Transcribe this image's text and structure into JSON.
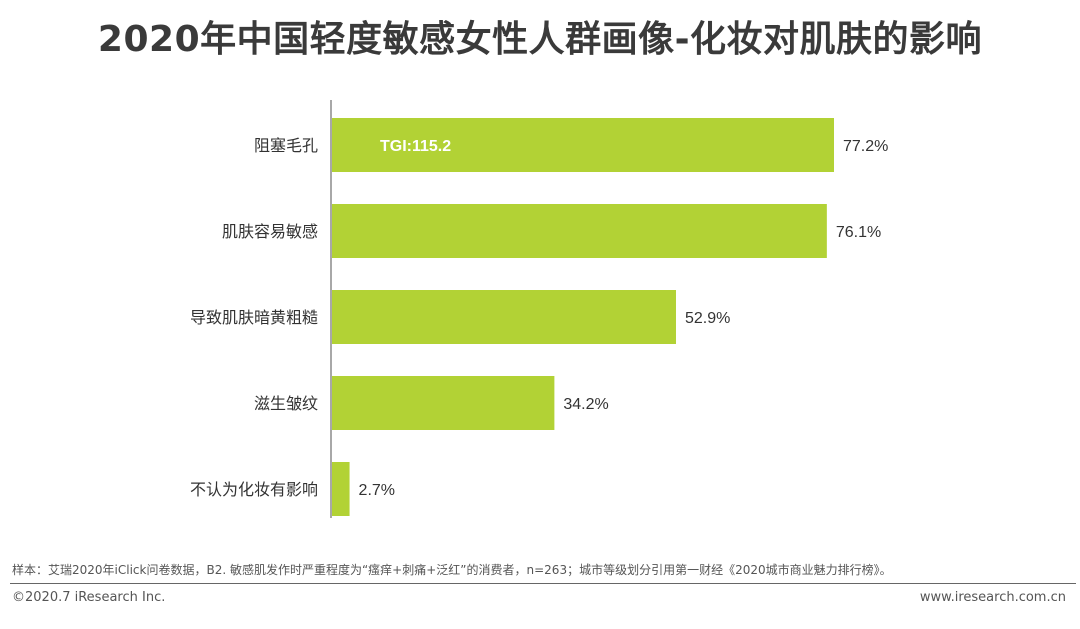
{
  "header": {
    "title": "2020年中国轻度敏感女性人群画像-化妆对肌肤的影响"
  },
  "chart_data": {
    "type": "bar",
    "orientation": "horizontal",
    "categories": [
      "阻塞毛孔",
      "肌肤容易敏感",
      "导致肌肤暗黄粗糙",
      "滋生皱纹",
      "不认为化妆有影响"
    ],
    "values": [
      77.2,
      76.1,
      52.9,
      34.2,
      2.7
    ],
    "value_labels": [
      "77.2%",
      "76.1%",
      "52.9%",
      "34.2%",
      "2.7%"
    ],
    "unit": "%",
    "xlim": [
      0,
      77.2
    ],
    "bar_color": "#b2d235",
    "axis_color": "#8c8c8c",
    "annotation": {
      "category_index": 0,
      "text": "TGI:115.2",
      "color": "#ffffff"
    }
  },
  "footer": {
    "note": "样本：艾瑞2020年iClick问卷数据，B2. 敏感肌发作时严重程度为“瘙痒+刺痛+泛红”的消费者，n=263；城市等级划分引用第一财经《2020城市商业魅力排行榜》。",
    "copyright": "©2020.7 iResearch Inc.",
    "website": "www.iresearch.com.cn"
  }
}
